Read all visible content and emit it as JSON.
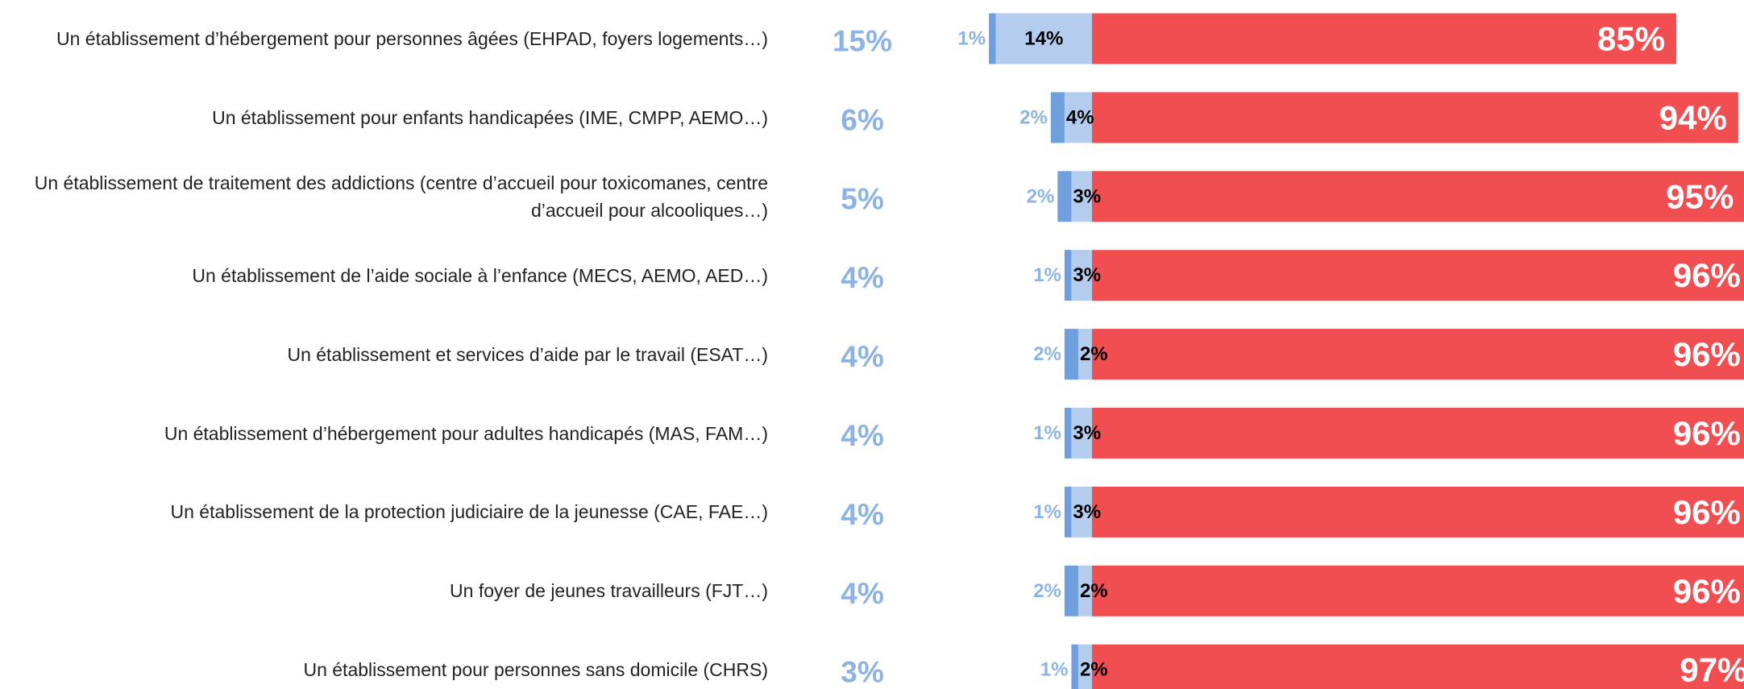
{
  "chart_data": {
    "type": "diverging-bar",
    "categories": [
      "Un établissement d’hébergement pour personnes âgées (EHPAD, foyers logements…)",
      "Un établissement pour enfants handicapées (IME, CMPP, AEMO…)",
      "Un établissement de traitement des addictions (centre d’accueil pour toxicomanes, centre d’accueil pour alcooliques…)",
      "Un établissement de l’aide sociale à l’enfance (MECS, AEMO, AED…)",
      "Un établissement et services d’aide par le travail (ESAT…)",
      "Un établissement d’hébergement pour adultes handicapés (MAS, FAM…)",
      "Un établissement de la protection judiciaire de la jeunesse (CAE, FAE…)",
      "Un foyer de jeunes travailleurs (FJT…)",
      "Un établissement pour personnes sans domicile (CHRS)"
    ],
    "totals": {
      "color": "#8db3e2",
      "values": [
        15,
        6,
        5,
        4,
        4,
        4,
        4,
        4,
        3
      ],
      "value_labels": [
        "15%",
        "6%",
        "5%",
        "4%",
        "4%",
        "4%",
        "4%",
        "4%",
        "3%"
      ]
    },
    "series": [
      {
        "color": "#6f9fdc",
        "values": [
          1,
          2,
          2,
          1,
          2,
          1,
          1,
          2,
          1
        ],
        "value_labels": [
          "1%",
          "2%",
          "2%",
          "1%",
          "2%",
          "1%",
          "1%",
          "2%",
          "1%"
        ]
      },
      {
        "color": "#b4cdef",
        "values": [
          14,
          4,
          3,
          3,
          2,
          3,
          3,
          2,
          2
        ],
        "value_labels": [
          "14%",
          "4%",
          "3%",
          "3%",
          "2%",
          "3%",
          "3%",
          "2%",
          "2%"
        ]
      },
      {
        "color": "#f04e50",
        "values": [
          85,
          94,
          95,
          96,
          96,
          96,
          96,
          96,
          97
        ],
        "value_labels": [
          "85%",
          "94%",
          "95%",
          "96%",
          "96%",
          "96%",
          "96%",
          "96%",
          "97%"
        ]
      }
    ]
  }
}
